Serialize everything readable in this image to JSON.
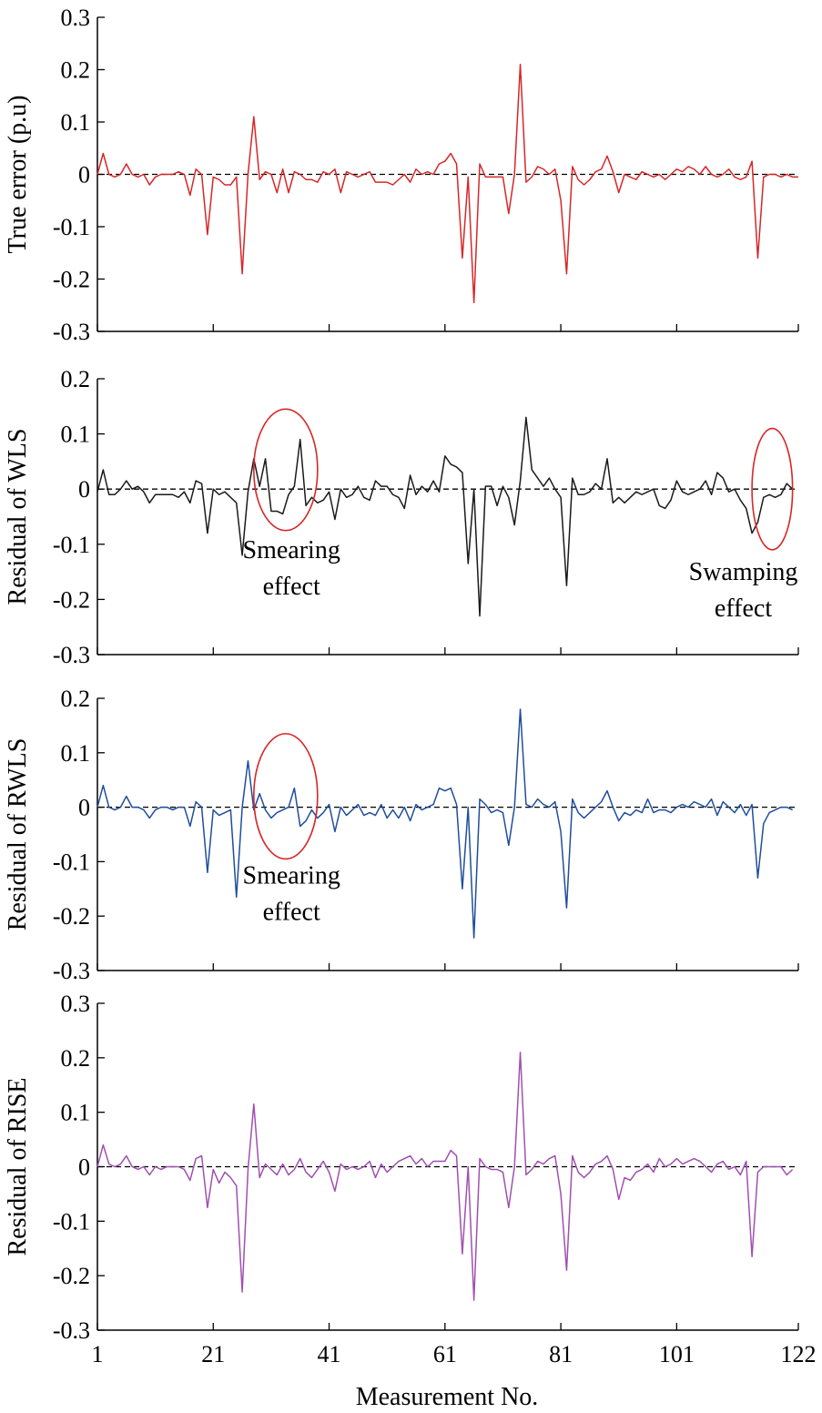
{
  "chart_data": [
    {
      "type": "line",
      "ylabel": "True error (p.u)",
      "ylim": [
        -0.3,
        0.3
      ],
      "yticks": [
        -0.3,
        -0.2,
        -0.1,
        0,
        0.1,
        0.2,
        0.3
      ],
      "ytick_labels": [
        "-0.3",
        "-0.2",
        "-0.1",
        "0",
        "0.1",
        "0.2",
        "0.3"
      ],
      "xlim": [
        1,
        122
      ],
      "color": "#d62728",
      "annotations": [],
      "series": [
        {
          "values": [
            0.0,
            0.04,
            0.0,
            -0.005,
            0.0,
            0.02,
            0.0,
            -0.005,
            0.0,
            -0.02,
            -0.005,
            0.0,
            0.0,
            0.0,
            0.005,
            0.0,
            -0.04,
            0.01,
            0.0,
            -0.115,
            -0.005,
            -0.01,
            -0.02,
            -0.02,
            -0.005,
            -0.19,
            0.0,
            0.11,
            -0.01,
            0.005,
            0.0,
            -0.035,
            0.01,
            -0.035,
            0.005,
            0.0,
            -0.01,
            -0.01,
            -0.015,
            0.005,
            0.0,
            0.01,
            -0.035,
            0.005,
            0.0,
            -0.005,
            0.0,
            0.005,
            -0.015,
            -0.015,
            -0.015,
            -0.02,
            -0.01,
            0.0,
            -0.015,
            0.01,
            0.0,
            0.005,
            0.0,
            0.02,
            0.025,
            0.04,
            0.02,
            -0.16,
            -0.005,
            -0.245,
            0.02,
            -0.005,
            -0.005,
            -0.005,
            -0.005,
            -0.075,
            0.0,
            0.21,
            -0.015,
            -0.005,
            0.015,
            0.01,
            0.0,
            0.01,
            -0.05,
            -0.19,
            0.015,
            -0.01,
            -0.02,
            -0.01,
            0.005,
            0.01,
            0.035,
            0.005,
            -0.035,
            0.0,
            -0.005,
            -0.01,
            0.005,
            0.0,
            -0.005,
            0.0,
            -0.01,
            0.0,
            0.01,
            0.005,
            0.015,
            0.01,
            0.0,
            0.015,
            0.0,
            -0.005,
            0.0,
            0.01,
            -0.005,
            -0.01,
            -0.005,
            0.025,
            -0.16,
            -0.005,
            0.0,
            0.0,
            -0.005,
            0.0,
            -0.005,
            -0.005
          ]
        }
      ]
    },
    {
      "type": "line",
      "ylabel": "Residual of WLS",
      "ylim": [
        -0.3,
        0.2
      ],
      "yticks": [
        -0.3,
        -0.2,
        -0.1,
        0,
        0.1,
        0.2
      ],
      "ytick_labels": [
        "-0.3",
        "-0.2",
        "-0.1",
        "0",
        "0.1",
        "0.2"
      ],
      "xlim": [
        1,
        122
      ],
      "color": "#1a1a1a",
      "annotations": [
        {
          "x": 33.5,
          "y": 0.035,
          "rx": 5.5,
          "ry": 0.11,
          "label_lines": [
            "Smearing",
            "effect"
          ],
          "label_x": 34.5,
          "label_y": -0.125
        },
        {
          "x": 117.5,
          "y": 0.0,
          "rx": 3.5,
          "ry": 0.11,
          "label_lines": [
            "Swamping",
            "effect"
          ],
          "label_x": 112.5,
          "label_y": -0.165
        }
      ],
      "series": [
        {
          "values": [
            -0.005,
            0.035,
            -0.01,
            -0.01,
            0.0,
            0.015,
            0.0,
            0.005,
            -0.005,
            -0.025,
            -0.01,
            -0.01,
            -0.01,
            -0.01,
            -0.015,
            -0.005,
            -0.025,
            0.015,
            0.01,
            -0.08,
            0.0,
            -0.01,
            -0.005,
            -0.015,
            -0.025,
            -0.12,
            -0.005,
            0.055,
            0.005,
            0.055,
            -0.04,
            -0.04,
            -0.045,
            -0.01,
            0.005,
            0.09,
            -0.03,
            -0.015,
            -0.025,
            -0.02,
            -0.005,
            -0.055,
            0.0,
            -0.015,
            -0.01,
            0.005,
            -0.015,
            -0.02,
            0.015,
            0.005,
            0.005,
            -0.01,
            -0.015,
            -0.035,
            0.025,
            -0.01,
            0.005,
            -0.005,
            0.015,
            -0.005,
            0.06,
            0.045,
            0.04,
            0.03,
            -0.135,
            0.0,
            -0.23,
            0.005,
            0.005,
            -0.03,
            0.005,
            -0.015,
            -0.065,
            0.015,
            0.13,
            0.035,
            0.02,
            0.005,
            0.02,
            0.0,
            -0.015,
            -0.175,
            0.02,
            -0.01,
            -0.01,
            -0.005,
            0.01,
            0.0,
            0.055,
            -0.025,
            -0.015,
            -0.025,
            -0.015,
            -0.005,
            -0.01,
            -0.005,
            0.0,
            -0.03,
            -0.035,
            -0.02,
            0.015,
            -0.005,
            -0.01,
            -0.005,
            0.0,
            0.015,
            -0.01,
            0.03,
            0.02,
            -0.005,
            0.0,
            -0.02,
            -0.035,
            -0.08,
            -0.06,
            -0.015,
            -0.01,
            -0.015,
            -0.01,
            0.01,
            0.0
          ]
        }
      ]
    },
    {
      "type": "line",
      "ylabel": "Residual of RWLS",
      "ylim": [
        -0.3,
        0.2
      ],
      "yticks": [
        -0.3,
        -0.2,
        -0.1,
        0,
        0.1,
        0.2
      ],
      "ytick_labels": [
        "-0.3",
        "-0.2",
        "-0.1",
        "0",
        "0.1",
        "0.2"
      ],
      "xlim": [
        1,
        122
      ],
      "color": "#1f4e9c",
      "annotations": [
        {
          "x": 33.5,
          "y": 0.02,
          "rx": 5.5,
          "ry": 0.115,
          "label_lines": [
            "Smearing",
            "effect"
          ],
          "label_x": 34.5,
          "label_y": -0.14
        }
      ],
      "series": [
        {
          "values": [
            0.0,
            0.04,
            0.0,
            -0.005,
            0.0,
            0.02,
            0.0,
            0.0,
            -0.005,
            -0.02,
            -0.005,
            0.0,
            0.0,
            -0.005,
            0.0,
            0.0,
            -0.035,
            0.01,
            0.0,
            -0.12,
            -0.005,
            -0.015,
            -0.01,
            -0.005,
            -0.165,
            0.0,
            0.085,
            -0.005,
            0.025,
            -0.005,
            -0.02,
            -0.01,
            -0.005,
            0.0,
            0.035,
            -0.035,
            -0.025,
            -0.005,
            -0.02,
            -0.01,
            0.005,
            -0.045,
            0.0,
            -0.015,
            -0.005,
            0.005,
            -0.015,
            -0.01,
            -0.015,
            0.005,
            -0.02,
            -0.005,
            -0.02,
            0.0,
            -0.025,
            0.005,
            -0.005,
            0.0,
            0.005,
            0.035,
            0.03,
            0.035,
            0.005,
            -0.15,
            0.0,
            -0.24,
            0.015,
            0.005,
            -0.01,
            -0.005,
            -0.01,
            -0.07,
            0.0,
            0.18,
            0.005,
            0.0,
            0.015,
            0.005,
            0.0,
            0.01,
            -0.045,
            -0.185,
            0.015,
            -0.01,
            -0.02,
            -0.01,
            0.0,
            0.01,
            0.03,
            0.0,
            -0.025,
            -0.01,
            -0.015,
            -0.005,
            -0.01,
            0.015,
            -0.01,
            -0.005,
            -0.005,
            -0.01,
            0.0,
            0.005,
            0.0,
            0.01,
            0.005,
            0.0,
            0.015,
            -0.015,
            0.01,
            0.0,
            -0.01,
            0.005,
            -0.015,
            0.005,
            -0.13,
            -0.03,
            -0.01,
            -0.005,
            0.0,
            0.0,
            -0.005
          ]
        }
      ]
    },
    {
      "type": "line",
      "ylabel": "Residual of RISE",
      "xlabel": "Measurement No.",
      "ylim": [
        -0.3,
        0.3
      ],
      "yticks": [
        -0.3,
        -0.2,
        -0.1,
        0,
        0.1,
        0.2,
        0.3
      ],
      "ytick_labels": [
        "-0.3",
        "-0.2",
        "-0.1",
        "0",
        "0.1",
        "0.2",
        "0.3"
      ],
      "xlim": [
        1,
        122
      ],
      "xticks": [
        1,
        21,
        41,
        61,
        81,
        101,
        122
      ],
      "xtick_labels": [
        "1",
        "21",
        "41",
        "61",
        "81",
        "101",
        "122"
      ],
      "color": "#a050b0",
      "annotations": [],
      "series": [
        {
          "values": [
            0.0,
            0.04,
            0.005,
            0.0,
            0.005,
            0.02,
            0.0,
            -0.005,
            0.0,
            -0.015,
            0.0,
            -0.005,
            0.0,
            0.0,
            0.0,
            -0.005,
            -0.025,
            0.015,
            0.02,
            -0.075,
            -0.005,
            -0.03,
            -0.01,
            -0.02,
            -0.035,
            -0.23,
            -0.005,
            0.115,
            -0.02,
            0.005,
            -0.005,
            -0.015,
            0.005,
            -0.015,
            -0.005,
            0.015,
            -0.01,
            -0.02,
            -0.005,
            0.01,
            -0.01,
            -0.045,
            0.005,
            -0.005,
            0.0,
            -0.005,
            0.0,
            0.01,
            -0.02,
            0.005,
            -0.01,
            0.0,
            0.01,
            0.015,
            0.02,
            0.005,
            0.015,
            0.0,
            0.01,
            0.01,
            0.01,
            0.03,
            0.02,
            -0.16,
            0.0,
            -0.245,
            0.015,
            0.0,
            -0.005,
            -0.005,
            -0.01,
            -0.075,
            0.0,
            0.21,
            -0.015,
            -0.005,
            0.01,
            0.005,
            0.015,
            0.02,
            -0.05,
            -0.19,
            0.02,
            -0.01,
            -0.02,
            -0.01,
            0.005,
            0.01,
            0.02,
            -0.005,
            -0.06,
            -0.02,
            -0.025,
            -0.01,
            -0.005,
            0.005,
            -0.01,
            0.015,
            0.0,
            0.005,
            0.015,
            0.005,
            0.01,
            0.015,
            0.01,
            0.0,
            -0.01,
            0.005,
            0.01,
            -0.005,
            0.0,
            -0.015,
            0.01,
            -0.165,
            -0.01,
            0.0,
            0.0,
            0.0,
            0.0,
            -0.015,
            -0.005
          ]
        }
      ]
    }
  ]
}
